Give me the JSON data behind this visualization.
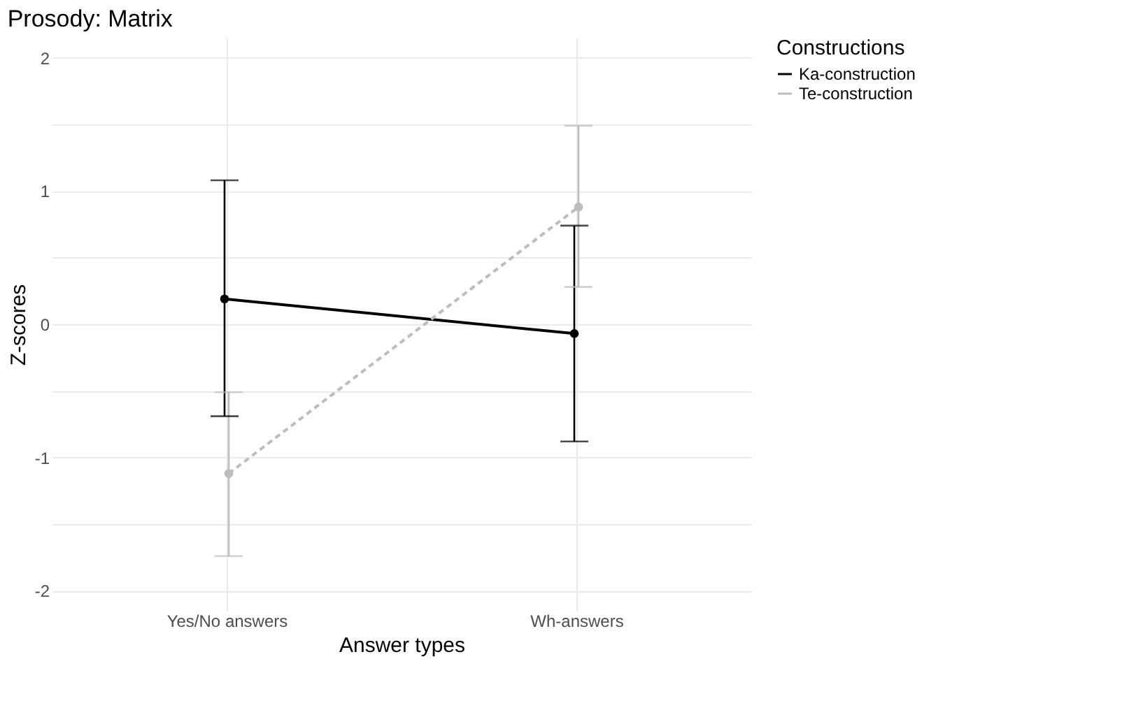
{
  "chart_data": {
    "type": "line",
    "title": "Prosody: Matrix",
    "xlabel": "Answer types",
    "ylabel": "Z-scores",
    "legend_title": "Constructions",
    "categories": [
      "Yes/No answers",
      "Wh-answers"
    ],
    "series": [
      {
        "name": "Ka-construction",
        "color": "#000000",
        "values": [
          0.19,
          -0.07
        ],
        "errors": [
          [
            -0.69,
            1.08
          ],
          [
            -0.88,
            0.74
          ]
        ],
        "line_style": "solid"
      },
      {
        "name": "Te-construction",
        "color": "#bdbdbd",
        "values": [
          -1.12,
          0.88
        ],
        "errors": [
          [
            -1.74,
            -0.51
          ],
          [
            0.28,
            1.49
          ]
        ],
        "line_style": "dashed"
      }
    ],
    "ylim": [
      -2.15,
      2.15
    ],
    "yticks": [
      -2,
      {
        "value": -1.5,
        "label": null
      },
      -1,
      {
        "value": -0.5,
        "label": null
      },
      0,
      {
        "value": 0.5,
        "label": null
      },
      1,
      {
        "value": 1.5,
        "label": null
      },
      2
    ],
    "grid": true,
    "legend": "right",
    "marker": "circle"
  }
}
